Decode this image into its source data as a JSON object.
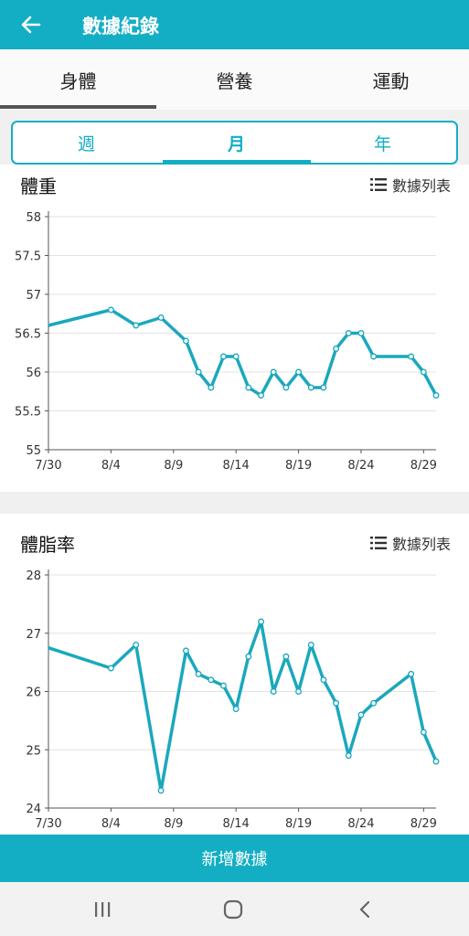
{
  "header": {
    "title": "數據紀錄",
    "back_icon": "arrow-left-icon"
  },
  "tabs": [
    {
      "label": "身體"
    },
    {
      "label": "營養"
    },
    {
      "label": "運動"
    }
  ],
  "active_tab": "身體",
  "period_tabs": [
    {
      "label": "週"
    },
    {
      "label": "月"
    },
    {
      "label": "年"
    }
  ],
  "active_period": "月",
  "colors": {
    "primary": "#14aec4",
    "line": "#1aa8bd"
  },
  "weight_panel": {
    "title": "體重",
    "list_label": "數據列表",
    "list_icon": "list-icon",
    "chart_data": {
      "type": "line",
      "x_tick_labels": [
        "7/30",
        "8/4",
        "8/9",
        "8/14",
        "8/19",
        "8/24",
        "8/29"
      ],
      "x_tick_days": [
        0,
        5,
        10,
        15,
        20,
        25,
        30
      ],
      "y_tick_labels": [
        "55",
        "55.5",
        "56",
        "56.5",
        "57",
        "57.5",
        "58"
      ],
      "ylim": [
        55,
        58
      ],
      "x_range_days": [
        0,
        31
      ],
      "start_label": "7/30",
      "points": [
        {
          "x": 0,
          "y": 56.6,
          "marker": false
        },
        {
          "x": 5,
          "y": 56.8
        },
        {
          "x": 7,
          "y": 56.6
        },
        {
          "x": 9,
          "y": 56.7
        },
        {
          "x": 11,
          "y": 56.4
        },
        {
          "x": 12,
          "y": 56.0
        },
        {
          "x": 13,
          "y": 55.8
        },
        {
          "x": 14,
          "y": 56.2
        },
        {
          "x": 15,
          "y": 56.2
        },
        {
          "x": 16,
          "y": 55.8
        },
        {
          "x": 17,
          "y": 55.7
        },
        {
          "x": 18,
          "y": 56.0
        },
        {
          "x": 19,
          "y": 55.8
        },
        {
          "x": 20,
          "y": 56.0
        },
        {
          "x": 21,
          "y": 55.8
        },
        {
          "x": 22,
          "y": 55.8
        },
        {
          "x": 23,
          "y": 56.3
        },
        {
          "x": 24,
          "y": 56.5
        },
        {
          "x": 25,
          "y": 56.5
        },
        {
          "x": 26,
          "y": 56.2
        },
        {
          "x": 29,
          "y": 56.2
        },
        {
          "x": 30,
          "y": 56.0
        },
        {
          "x": 31,
          "y": 55.7
        }
      ]
    }
  },
  "bodyfat_panel": {
    "title": "體脂率",
    "list_label": "數據列表",
    "list_icon": "list-icon",
    "chart_data": {
      "type": "line",
      "x_tick_labels": [
        "7/30",
        "8/4",
        "8/9",
        "8/14",
        "8/19",
        "8/24",
        "8/29"
      ],
      "x_tick_days": [
        0,
        5,
        10,
        15,
        20,
        25,
        30
      ],
      "y_tick_labels": [
        "24",
        "25",
        "26",
        "27",
        "28"
      ],
      "ylim": [
        24,
        28
      ],
      "x_range_days": [
        0,
        31
      ],
      "start_label": "7/30",
      "points": [
        {
          "x": 0,
          "y": 26.75,
          "marker": false
        },
        {
          "x": 5,
          "y": 26.4
        },
        {
          "x": 7,
          "y": 26.8
        },
        {
          "x": 9,
          "y": 24.3
        },
        {
          "x": 11,
          "y": 26.7
        },
        {
          "x": 12,
          "y": 26.3
        },
        {
          "x": 13,
          "y": 26.2
        },
        {
          "x": 14,
          "y": 26.1
        },
        {
          "x": 15,
          "y": 25.7
        },
        {
          "x": 16,
          "y": 26.6
        },
        {
          "x": 17,
          "y": 27.2
        },
        {
          "x": 18,
          "y": 26.0
        },
        {
          "x": 19,
          "y": 26.6
        },
        {
          "x": 20,
          "y": 26.0
        },
        {
          "x": 21,
          "y": 26.8
        },
        {
          "x": 22,
          "y": 26.2
        },
        {
          "x": 23,
          "y": 25.8
        },
        {
          "x": 24,
          "y": 24.9
        },
        {
          "x": 25,
          "y": 25.6
        },
        {
          "x": 26,
          "y": 25.8
        },
        {
          "x": 29,
          "y": 26.3
        },
        {
          "x": 30,
          "y": 25.3
        },
        {
          "x": 31,
          "y": 24.8
        }
      ]
    }
  },
  "add_button": {
    "label": "新增數據"
  },
  "navbar": {
    "recents_icon": "recents-icon",
    "home_icon": "home-icon",
    "back_icon": "back-chevron-icon"
  }
}
